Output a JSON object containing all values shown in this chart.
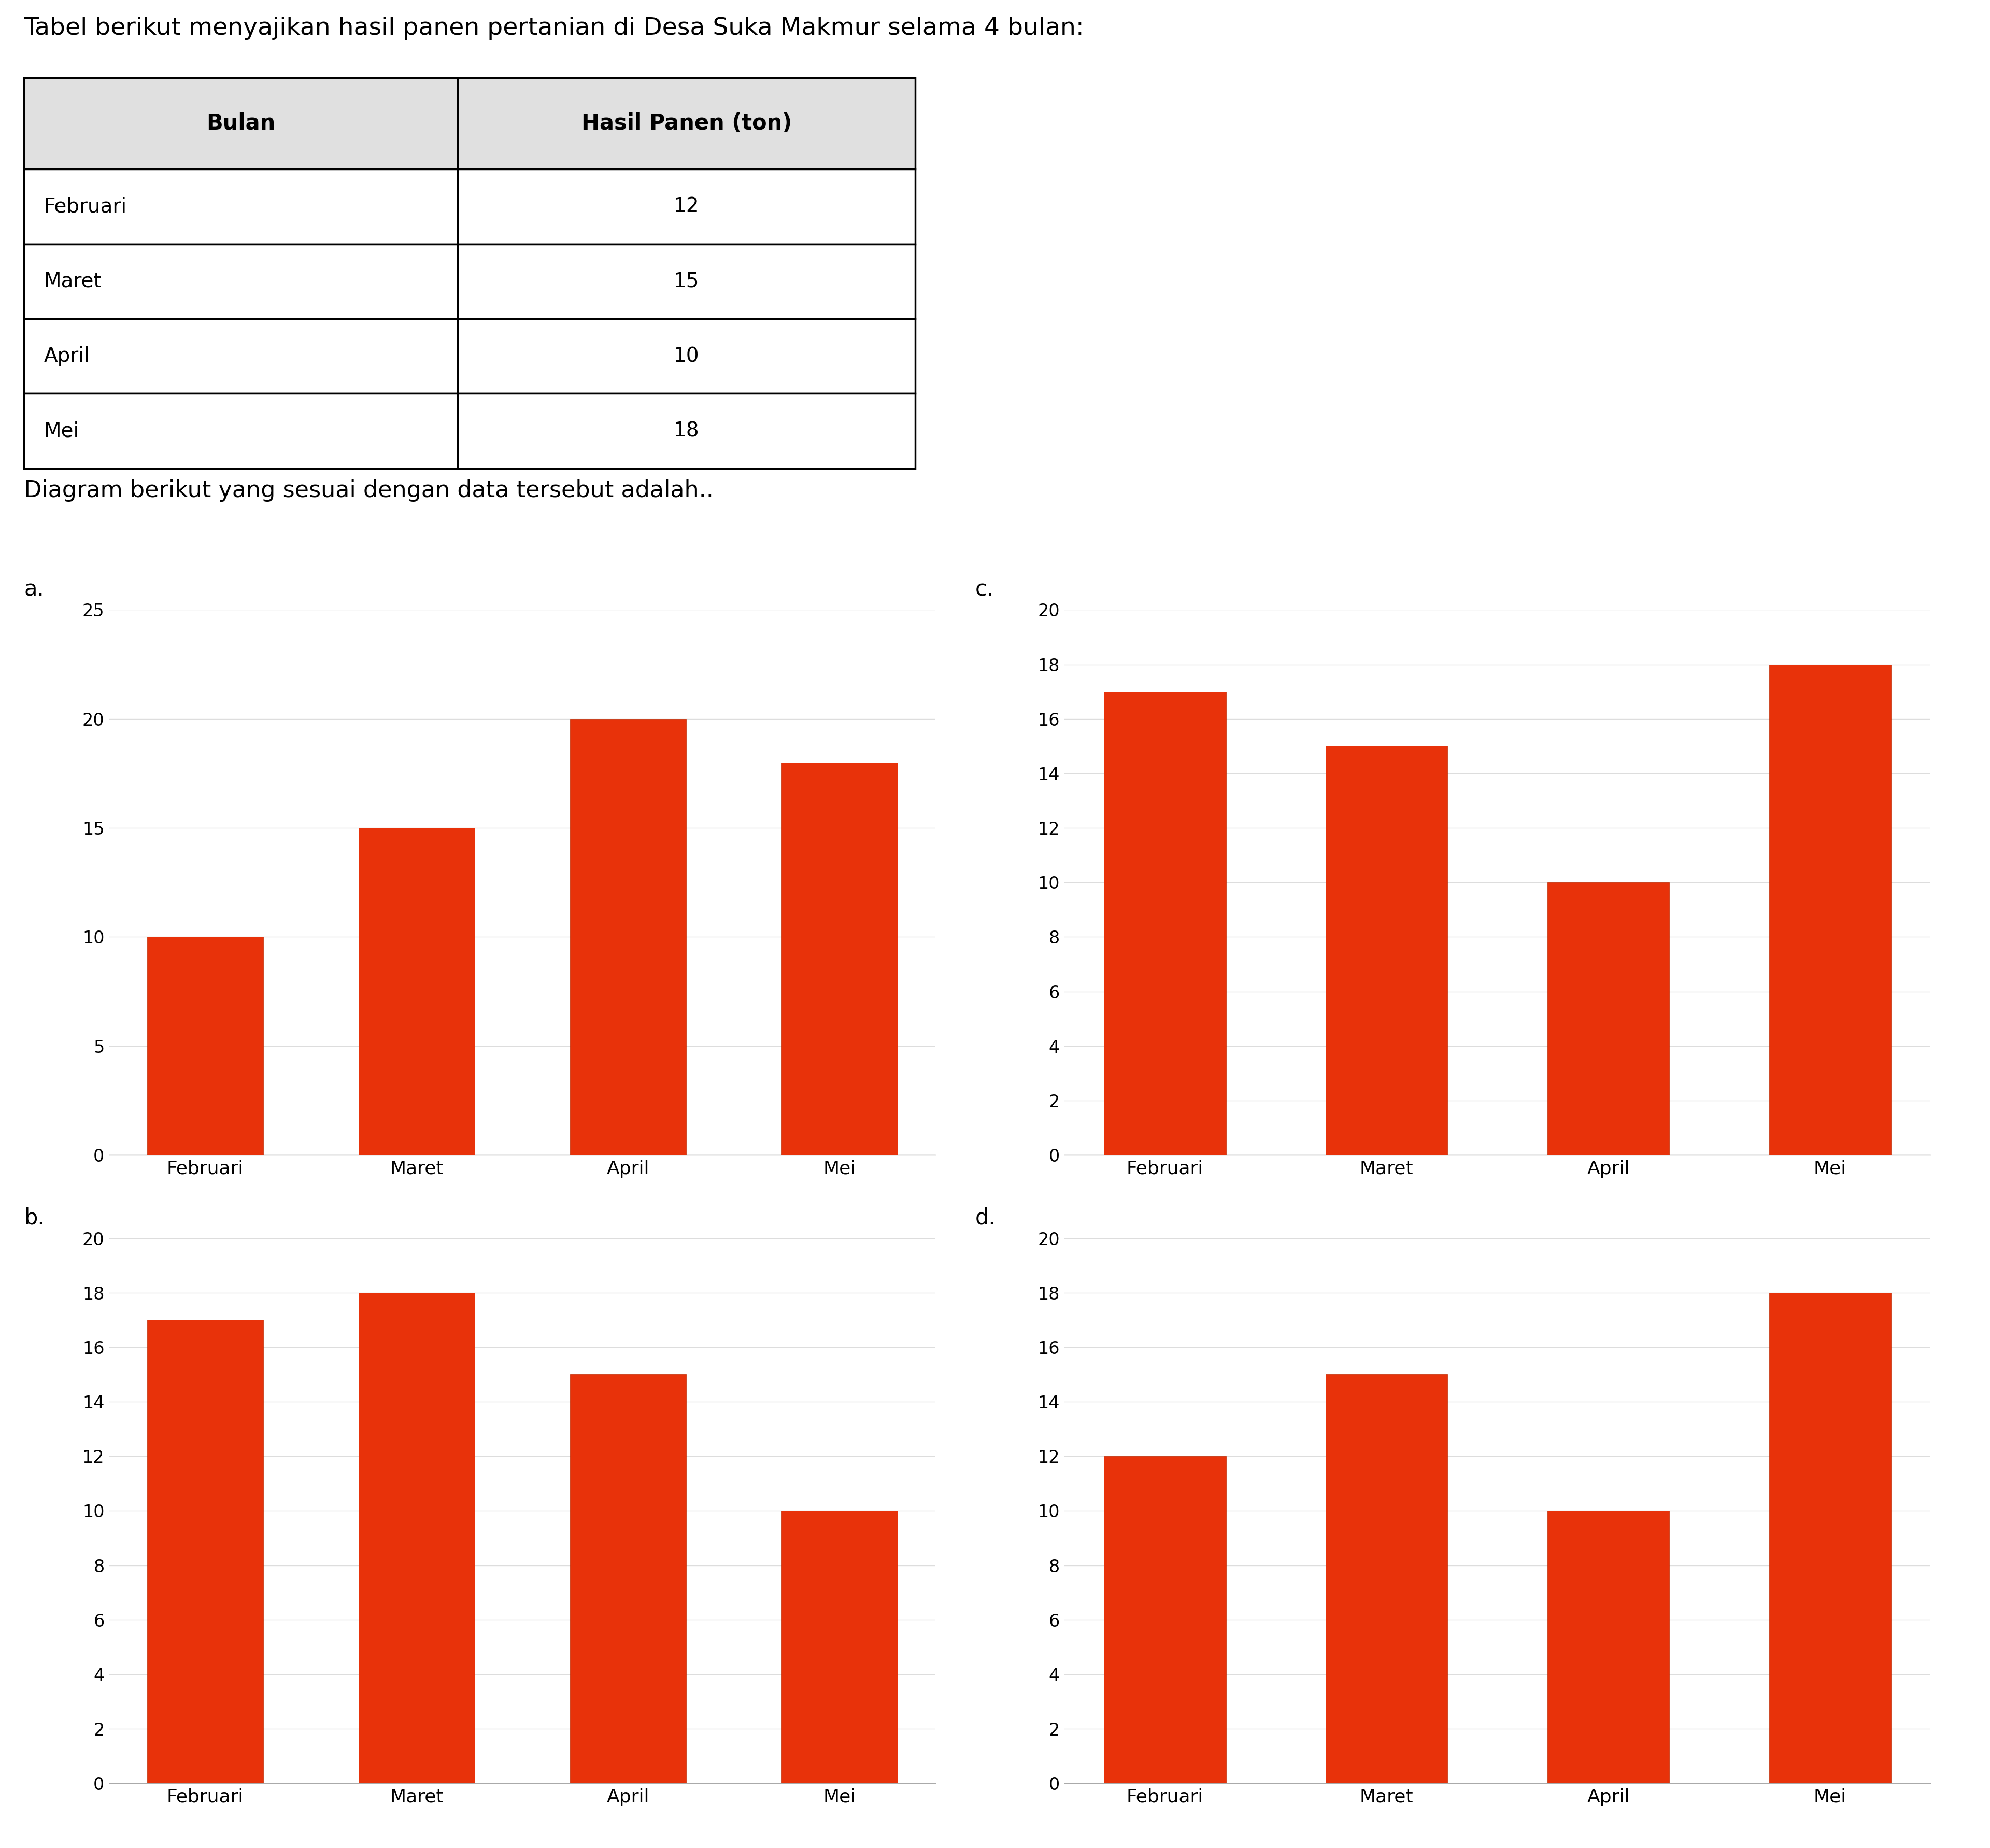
{
  "title": "Tabel berikut menyajikan hasil panen pertanian di Desa Suka Makmur selama 4 bulan:",
  "subtitle": "Diagram berikut yang sesuai dengan data tersebut adalah..",
  "table_headers": [
    "Bulan",
    "Hasil Panen (ton)"
  ],
  "table_data": [
    [
      "Februari",
      12
    ],
    [
      "Maret",
      15
    ],
    [
      "April",
      10
    ],
    [
      "Mei",
      18
    ]
  ],
  "months": [
    "Februari",
    "Maret",
    "April",
    "Mei"
  ],
  "chart_a": {
    "label": "a.",
    "values": [
      10,
      15,
      20,
      18
    ],
    "ylim": [
      0,
      25
    ],
    "yticks": [
      0,
      5,
      10,
      15,
      20,
      25
    ]
  },
  "chart_b": {
    "label": "b.",
    "values": [
      17,
      18,
      15,
      10
    ],
    "ylim": [
      0,
      20
    ],
    "yticks": [
      0,
      2,
      4,
      6,
      8,
      10,
      12,
      14,
      16,
      18,
      20
    ]
  },
  "chart_c": {
    "label": "c.",
    "values": [
      17,
      15,
      10,
      18
    ],
    "ylim": [
      0,
      20
    ],
    "yticks": [
      0,
      2,
      4,
      6,
      8,
      10,
      12,
      14,
      16,
      18,
      20
    ]
  },
  "chart_d": {
    "label": "d.",
    "values": [
      12,
      15,
      10,
      18
    ],
    "ylim": [
      0,
      20
    ],
    "yticks": [
      0,
      2,
      4,
      6,
      8,
      10,
      12,
      14,
      16,
      18,
      20
    ]
  },
  "bar_color": "#E8320A",
  "bar_edge_color": "#C02800",
  "grid_color": "#DDDDDD",
  "bg_color": "#FFFFFF",
  "label_fontsize": 30,
  "tick_fontsize": 24,
  "xlabel_fontsize": 26,
  "title_fontsize": 34,
  "subtitle_fontsize": 32,
  "table_fontsize": 28,
  "table_header_fontsize": 30,
  "chart_label_fontsize": 30
}
